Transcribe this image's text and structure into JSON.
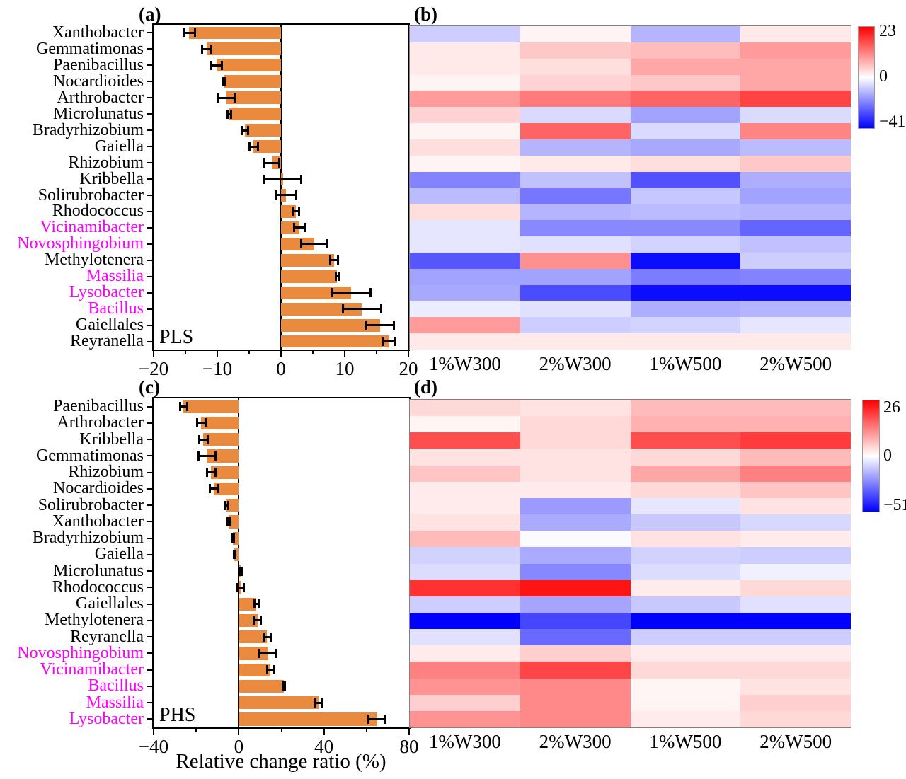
{
  "figure_kind": "four-panel bacterial genus figure: two horizontal bar charts with error bars and two blue-white-red heatmaps with colorbars",
  "colors": {
    "bar_orange": "#E98A3F",
    "magenta_label": "#FF00FF",
    "axis_black": "#000000",
    "heatmap_border_gray": "#808080",
    "colorbar_top_red": "#FF0000",
    "colorbar_mid_white": "#FFFFFF",
    "colorbar_bottom_blue": "#0000FF"
  },
  "chart_data": [
    {
      "id": "a",
      "type": "bar",
      "orientation": "horizontal",
      "title": "(a)",
      "group_label": "PLS",
      "xlim": [
        -20,
        20
      ],
      "xticks": [
        -20,
        -10,
        0,
        10,
        20
      ],
      "minor_xticks": [
        -15,
        -5,
        5,
        15
      ],
      "bar_color": "#E98A3F",
      "categories": [
        "Xanthobacter",
        "Gemmatimonas",
        "Paenibacillus",
        "Nocardioides",
        "Arthrobacter",
        "Microlunatus",
        "Bradyrhizobium",
        "Gaiella",
        "Rhizobium",
        "Kribbella",
        "Solirubrobacter",
        "Rhodococcus",
        "Vicinamibacter",
        "Novosphingobium",
        "Methylotenera",
        "Massilia",
        "Lysobacter",
        "Bacillus",
        "Gaiellales",
        "Reyranella"
      ],
      "label_colors": [
        "black",
        "black",
        "black",
        "black",
        "black",
        "black",
        "black",
        "black",
        "black",
        "black",
        "black",
        "black",
        "magenta",
        "magenta",
        "black",
        "magenta",
        "magenta",
        "magenta",
        "black",
        "black"
      ],
      "values": [
        -14.4,
        -11.7,
        -10.1,
        -9.0,
        -8.6,
        -8.1,
        -5.7,
        -4.3,
        -1.5,
        0.3,
        0.8,
        2.3,
        2.9,
        5.2,
        8.3,
        8.8,
        11.0,
        12.7,
        15.5,
        17.0
      ],
      "errors": [
        0.9,
        0.7,
        0.8,
        0.2,
        1.3,
        0.3,
        0.5,
        0.7,
        1.2,
        2.9,
        1.6,
        0.5,
        0.9,
        2.0,
        0.6,
        0.2,
        3.0,
        3.0,
        2.2,
        0.9
      ]
    },
    {
      "id": "b",
      "type": "heatmap",
      "title": "(b)",
      "columns": [
        "1%W300",
        "2%W300",
        "1%W500",
        "2%W500"
      ],
      "rows": [
        "Xanthobacter",
        "Gemmatimonas",
        "Paenibacillus",
        "Nocardioides",
        "Arthrobacter",
        "Microlunatus",
        "Bradyrhizobium",
        "Gaiella",
        "Rhizobium",
        "Kribbella",
        "Solirubrobacter",
        "Rhodococcus",
        "Vicinamibacter",
        "Novosphingobium",
        "Methylotenera",
        "Massilia",
        "Lysobacter",
        "Bacillus",
        "Gaiellales",
        "Reyranella"
      ],
      "vmax": 23,
      "vmin": -41,
      "colorbar": {
        "max_label": "23",
        "zero_label": "0",
        "min_label": "−41"
      },
      "values": [
        [
          -8,
          1,
          -12,
          2
        ],
        [
          2,
          5,
          6,
          9
        ],
        [
          2,
          3,
          8,
          8
        ],
        [
          1,
          4,
          5,
          8
        ],
        [
          9,
          12,
          14,
          17
        ],
        [
          4,
          -6,
          -15,
          -6
        ],
        [
          1,
          14,
          -6,
          11
        ],
        [
          3,
          -12,
          -14,
          -11
        ],
        [
          1,
          2,
          3,
          5
        ],
        [
          -20,
          -10,
          -28,
          -13
        ],
        [
          -11,
          -22,
          -9,
          -15
        ],
        [
          3,
          -12,
          -11,
          -12
        ],
        [
          -4,
          -19,
          -19,
          -25
        ],
        [
          -4,
          -5,
          -7,
          -10
        ],
        [
          -27,
          10,
          -39,
          -8
        ],
        [
          -15,
          -15,
          -21,
          -20
        ],
        [
          -14,
          -29,
          -39,
          -39
        ],
        [
          -3,
          -5,
          -13,
          -12
        ],
        [
          9,
          -8,
          -7,
          -4
        ],
        [
          2,
          2,
          2,
          2
        ]
      ]
    },
    {
      "id": "c",
      "type": "bar",
      "orientation": "horizontal",
      "title": "(c)",
      "group_label": "PHS",
      "xlabel": "Relative change ratio (%)",
      "xlim": [
        -40,
        80
      ],
      "xticks": [
        -40,
        0,
        40,
        80
      ],
      "minor_xticks": [
        -20,
        20,
        60
      ],
      "bar_color": "#E98A3F",
      "categories": [
        "Paenibacillus",
        "Arthrobacter",
        "Kribbella",
        "Gemmatimonas",
        "Rhizobium",
        "Nocardioides",
        "Solirubrobacter",
        "Xanthobacter",
        "Bradyrhizobium",
        "Gaiella",
        "Microlunatus",
        "Rhodococcus",
        "Gaiellales",
        "Methylotenera",
        "Reyranella",
        "Novosphingobium",
        "Vicinamibacter",
        "Bacillus",
        "Massilia",
        "Lysobacter"
      ],
      "label_colors": [
        "black",
        "black",
        "black",
        "black",
        "black",
        "black",
        "black",
        "black",
        "black",
        "black",
        "black",
        "black",
        "black",
        "black",
        "black",
        "magenta",
        "magenta",
        "magenta",
        "magenta",
        "magenta"
      ],
      "values": [
        -26,
        -17.7,
        -16.7,
        -15,
        -13,
        -11.7,
        -5.7,
        -4.7,
        -2.7,
        -2,
        1,
        1,
        8.3,
        8.7,
        13.3,
        13.7,
        15,
        21,
        37.3,
        65
      ],
      "errors": [
        1.7,
        2,
        2,
        4,
        2,
        2,
        0.7,
        0.7,
        0.3,
        0.3,
        0.5,
        1.5,
        1,
        1.7,
        1.7,
        4,
        1.5,
        0.5,
        1.5,
        4
      ]
    },
    {
      "id": "d",
      "type": "heatmap",
      "title": "(d)",
      "columns": [
        "1%W300",
        "2%W300",
        "1%W500",
        "2%W500"
      ],
      "rows": [
        "Paenibacillus",
        "Arthrobacter",
        "Kribbella",
        "Gemmatimonas",
        "Rhizobium",
        "Nocardioides",
        "Solirubrobacter",
        "Xanthobacter",
        "Bradyrhizobium",
        "Gaiella",
        "Microlunatus",
        "Rhodococcus",
        "Gaiellales",
        "Methylotenera",
        "Reyranella",
        "Novosphingobium",
        "Vicinamibacter",
        "Bacillus",
        "Massilia",
        "Lysobacter"
      ],
      "vmax": 26,
      "vmin": -51,
      "colorbar": {
        "max_label": "26",
        "zero_label": "0",
        "min_label": "−51"
      },
      "values": [
        [
          4,
          3,
          7,
          7
        ],
        [
          1,
          4,
          8,
          8
        ],
        [
          18,
          4,
          18,
          20
        ],
        [
          3,
          3,
          4,
          7
        ],
        [
          6,
          3,
          9,
          13
        ],
        [
          2,
          2,
          4,
          6
        ],
        [
          2,
          -20,
          -5,
          3
        ],
        [
          3,
          -17,
          -11,
          -8
        ],
        [
          7,
          -1,
          3,
          2
        ],
        [
          -9,
          -17,
          -9,
          -10
        ],
        [
          -7,
          -24,
          -7,
          -3
        ],
        [
          21,
          24,
          2,
          4
        ],
        [
          -10,
          -18,
          -11,
          -6
        ],
        [
          -51,
          -37,
          -51,
          -51
        ],
        [
          -6,
          -30,
          -10,
          -10
        ],
        [
          2,
          5,
          2,
          2
        ],
        [
          13,
          19,
          4,
          4
        ],
        [
          11,
          12,
          1,
          3
        ],
        [
          5,
          12,
          1,
          5
        ],
        [
          11,
          12,
          2,
          4
        ]
      ]
    }
  ]
}
